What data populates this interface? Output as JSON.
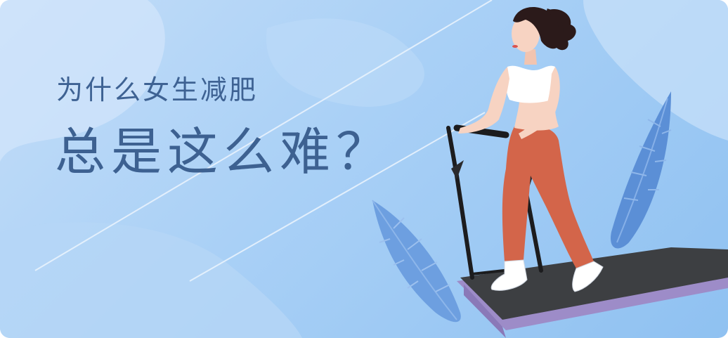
{
  "banner": {
    "line1": "为什么女生减肥",
    "line2": "总是这么难？"
  },
  "colors": {
    "background_light": "#c3ddf8",
    "background_dark": "#8fc1f1",
    "heading_text": "#3e6293",
    "leaf": "#5b8fd6",
    "treadmill_belt": "#3d3f42",
    "treadmill_frame": "#9d8cc8",
    "leggings": "#d3654a",
    "top": "#ffffff",
    "hair": "#2b1a1a"
  },
  "icons": [
    "leaf-left-icon",
    "leaf-right-icon",
    "woman-runner-illustration",
    "treadmill-illustration"
  ]
}
